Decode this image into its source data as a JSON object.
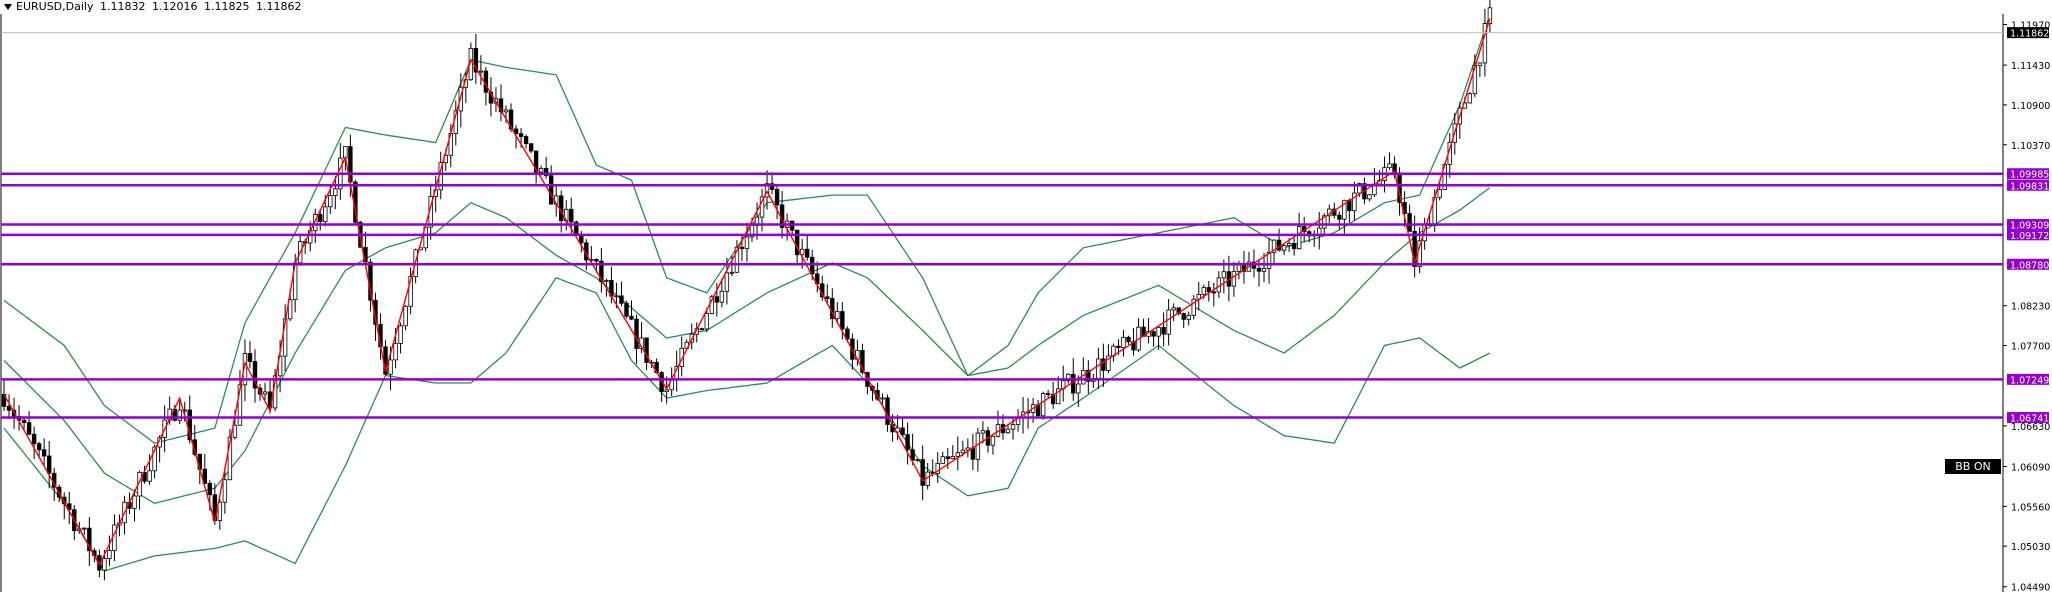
{
  "header": {
    "symbol": "EURUSD,Daily",
    "open": "1.11832",
    "high": "1.12016",
    "low": "1.11825",
    "close": "1.11862"
  },
  "indicator_label": "BB ON",
  "colors": {
    "background": "#ffffff",
    "bull_candle": "#ffffff",
    "bear_candle": "#000000",
    "bollinger": "#2e8b57",
    "zigzag": "#ff0000",
    "levels": "#9400d3",
    "price_tag": "#000000"
  },
  "chart_data": {
    "type": "candlestick",
    "timeframe": "Daily",
    "y_axis_ticks": [
      "1.11970",
      "1.11430",
      "1.10900",
      "1.10370",
      "1.08230",
      "1.07700",
      "1.06630",
      "1.06090",
      "1.05560",
      "1.05030",
      "1.04490"
    ],
    "ylim": [
      1.0442,
      1.1211
    ],
    "current_price": "1.11862",
    "horizontal_levels": [
      "1.09985",
      "1.09831",
      "1.09309",
      "1.09172",
      "1.08780",
      "1.07249",
      "1.06741"
    ],
    "zigzag_pivots": [
      [
        0,
        1.0705
      ],
      [
        19,
        1.0478
      ],
      [
        35,
        1.07
      ],
      [
        42,
        1.0535
      ],
      [
        48,
        1.0747
      ],
      [
        53,
        1.0683
      ],
      [
        58,
        1.088
      ],
      [
        68,
        1.102
      ],
      [
        76,
        1.0735
      ],
      [
        93,
        1.115
      ],
      [
        132,
        1.0712
      ],
      [
        152,
        1.0975
      ],
      [
        183,
        1.059
      ],
      [
        277,
        1.1002
      ],
      [
        281,
        1.088
      ],
      [
        296,
        1.1205
      ]
    ],
    "bollinger_upper": [
      [
        0,
        1.083
      ],
      [
        12,
        1.077
      ],
      [
        20,
        1.069
      ],
      [
        30,
        1.064
      ],
      [
        42,
        1.066
      ],
      [
        48,
        1.08
      ],
      [
        58,
        1.092
      ],
      [
        68,
        1.106
      ],
      [
        76,
        1.105
      ],
      [
        86,
        1.104
      ],
      [
        93,
        1.115
      ],
      [
        100,
        1.114
      ],
      [
        110,
        1.113
      ],
      [
        118,
        1.101
      ],
      [
        125,
        1.099
      ],
      [
        132,
        1.086
      ],
      [
        140,
        1.084
      ],
      [
        152,
        1.096
      ],
      [
        165,
        1.097
      ],
      [
        172,
        1.097
      ],
      [
        183,
        1.086
      ],
      [
        192,
        1.073
      ],
      [
        200,
        1.077
      ],
      [
        206,
        1.084
      ],
      [
        215,
        1.09
      ],
      [
        230,
        1.092
      ],
      [
        245,
        1.094
      ],
      [
        255,
        1.09
      ],
      [
        265,
        1.092
      ],
      [
        275,
        1.096
      ],
      [
        282,
        1.097
      ],
      [
        290,
        1.109
      ],
      [
        296,
        1.121
      ]
    ],
    "bollinger_middle": [
      [
        0,
        1.075
      ],
      [
        12,
        1.067
      ],
      [
        20,
        1.06
      ],
      [
        30,
        1.056
      ],
      [
        42,
        1.058
      ],
      [
        48,
        1.063
      ],
      [
        58,
        1.076
      ],
      [
        68,
        1.087
      ],
      [
        76,
        1.09
      ],
      [
        86,
        1.092
      ],
      [
        93,
        1.096
      ],
      [
        100,
        1.094
      ],
      [
        110,
        1.089
      ],
      [
        118,
        1.086
      ],
      [
        125,
        1.082
      ],
      [
        132,
        1.078
      ],
      [
        140,
        1.079
      ],
      [
        152,
        1.084
      ],
      [
        165,
        1.088
      ],
      [
        172,
        1.086
      ],
      [
        183,
        1.079
      ],
      [
        192,
        1.073
      ],
      [
        200,
        1.074
      ],
      [
        206,
        1.077
      ],
      [
        215,
        1.081
      ],
      [
        230,
        1.085
      ],
      [
        245,
        1.079
      ],
      [
        255,
        1.076
      ],
      [
        265,
        1.081
      ],
      [
        275,
        1.088
      ],
      [
        282,
        1.092
      ],
      [
        290,
        1.095
      ],
      [
        296,
        1.098
      ]
    ],
    "bollinger_lower": [
      [
        0,
        1.066
      ],
      [
        12,
        1.056
      ],
      [
        20,
        1.047
      ],
      [
        30,
        1.049
      ],
      [
        42,
        1.05
      ],
      [
        48,
        1.051
      ],
      [
        58,
        1.048
      ],
      [
        68,
        1.061
      ],
      [
        76,
        1.073
      ],
      [
        86,
        1.072
      ],
      [
        93,
        1.072
      ],
      [
        100,
        1.076
      ],
      [
        110,
        1.086
      ],
      [
        118,
        1.084
      ],
      [
        125,
        1.075
      ],
      [
        132,
        1.07
      ],
      [
        140,
        1.071
      ],
      [
        152,
        1.072
      ],
      [
        165,
        1.077
      ],
      [
        172,
        1.072
      ],
      [
        183,
        1.061
      ],
      [
        192,
        1.057
      ],
      [
        200,
        1.058
      ],
      [
        206,
        1.066
      ],
      [
        215,
        1.07
      ],
      [
        230,
        1.077
      ],
      [
        245,
        1.069
      ],
      [
        255,
        1.065
      ],
      [
        265,
        1.064
      ],
      [
        275,
        1.077
      ],
      [
        282,
        1.078
      ],
      [
        290,
        1.074
      ],
      [
        296,
        1.076
      ]
    ]
  }
}
